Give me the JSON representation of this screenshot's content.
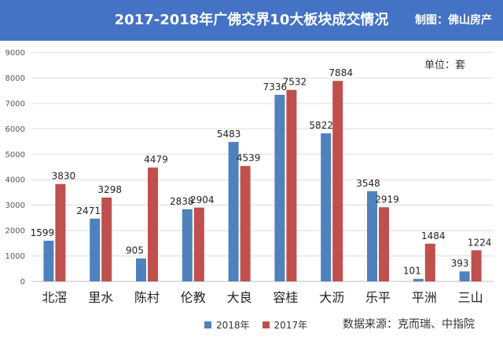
{
  "header": {
    "title": "2017-2018年广佛交界10大板块成交情况",
    "credit": "制图：佛山房产"
  },
  "unit_label": "单位：套",
  "source_label": "数据来源：克而瑞、中指院",
  "colors": {
    "header_bg": "#4472c4",
    "series_2018": "#4f81bd",
    "series_2017": "#c0504d"
  },
  "chart_data": {
    "type": "bar",
    "title": "2017-2018年广佛交界10大板块成交情况",
    "xlabel": "",
    "ylabel": "",
    "ylim": [
      0,
      9000
    ],
    "yticks": [
      0,
      1000,
      2000,
      3000,
      4000,
      5000,
      6000,
      7000,
      8000,
      9000
    ],
    "grid": true,
    "legend": "bottom",
    "categories": [
      "北滘",
      "里水",
      "陈村",
      "伦教",
      "大良",
      "容桂",
      "大沥",
      "乐平",
      "平洲",
      "三山"
    ],
    "series": [
      {
        "name": "2018年",
        "values": [
          1599,
          2471,
          905,
          2838,
          5483,
          7336,
          5822,
          3548,
          101,
          393
        ]
      },
      {
        "name": "2017年",
        "values": [
          3830,
          3298,
          4479,
          2904,
          4539,
          7532,
          7884,
          2919,
          1484,
          1224
        ]
      }
    ]
  }
}
